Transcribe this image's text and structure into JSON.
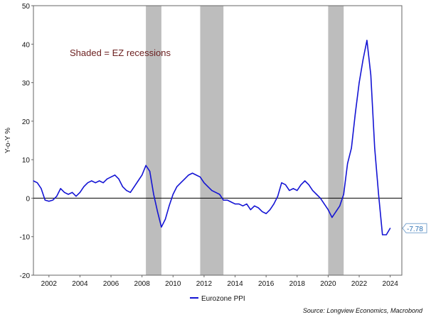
{
  "chart_data": {
    "type": "line",
    "title": "",
    "xlabel": "",
    "ylabel": "Y-o-Y %",
    "xlim": [
      2001.0,
      2024.75
    ],
    "ylim": [
      -20,
      50
    ],
    "y_ticks": [
      -20,
      -10,
      0,
      10,
      20,
      30,
      40,
      50
    ],
    "x_ticks": [
      2002,
      2004,
      2006,
      2008,
      2010,
      2012,
      2014,
      2016,
      2018,
      2020,
      2022,
      2024
    ],
    "y_tick_labels": [
      "-20",
      "-10",
      "0",
      "10",
      "20",
      "30",
      "40",
      "50"
    ],
    "x_tick_labels": [
      "2002",
      "2004",
      "2006",
      "2008",
      "2010",
      "2012",
      "2014",
      "2016",
      "2018",
      "2020",
      "2022",
      "2024"
    ],
    "zero_line": true,
    "recessions": [
      {
        "start": 2008.25,
        "end": 2009.25
      },
      {
        "start": 2011.75,
        "end": 2013.25
      },
      {
        "start": 2020.0,
        "end": 2021.0
      }
    ],
    "annotation": "Shaded = EZ recessions",
    "series": [
      {
        "name": "Eurozone PPI",
        "color": "#1414d4",
        "x": [
          2001.0,
          2001.25,
          2001.5,
          2001.75,
          2002.0,
          2002.25,
          2002.5,
          2002.75,
          2003.0,
          2003.25,
          2003.5,
          2003.75,
          2004.0,
          2004.25,
          2004.5,
          2004.75,
          2005.0,
          2005.25,
          2005.5,
          2005.75,
          2006.0,
          2006.25,
          2006.5,
          2006.75,
          2007.0,
          2007.25,
          2007.5,
          2007.75,
          2008.0,
          2008.25,
          2008.5,
          2008.75,
          2009.0,
          2009.25,
          2009.5,
          2009.75,
          2010.0,
          2010.25,
          2010.5,
          2010.75,
          2011.0,
          2011.25,
          2011.5,
          2011.75,
          2012.0,
          2012.25,
          2012.5,
          2012.75,
          2013.0,
          2013.25,
          2013.5,
          2013.75,
          2014.0,
          2014.25,
          2014.5,
          2014.75,
          2015.0,
          2015.25,
          2015.5,
          2015.75,
          2016.0,
          2016.25,
          2016.5,
          2016.75,
          2017.0,
          2017.25,
          2017.5,
          2017.75,
          2018.0,
          2018.25,
          2018.5,
          2018.75,
          2019.0,
          2019.25,
          2019.5,
          2019.75,
          2020.0,
          2020.25,
          2020.5,
          2020.75,
          2021.0,
          2021.25,
          2021.5,
          2021.75,
          2022.0,
          2022.25,
          2022.5,
          2022.75,
          2023.0,
          2023.25,
          2023.5,
          2023.75,
          2024.0
        ],
        "values": [
          4.5,
          4.0,
          2.5,
          -0.5,
          -0.8,
          -0.5,
          0.5,
          2.5,
          1.5,
          1.0,
          1.5,
          0.5,
          1.5,
          3.0,
          4.0,
          4.5,
          4.0,
          4.5,
          4.0,
          5.0,
          5.5,
          6.0,
          5.0,
          3.0,
          2.0,
          1.5,
          3.0,
          4.5,
          6.0,
          8.5,
          7.0,
          1.0,
          -3.5,
          -7.5,
          -5.5,
          -2.0,
          1.0,
          3.0,
          4.0,
          5.0,
          6.0,
          6.5,
          6.0,
          5.5,
          4.0,
          3.0,
          2.0,
          1.5,
          1.0,
          -0.5,
          -0.5,
          -1.0,
          -1.5,
          -1.5,
          -2.0,
          -1.5,
          -3.0,
          -2.0,
          -2.5,
          -3.5,
          -4.0,
          -3.0,
          -1.5,
          0.5,
          4.0,
          3.5,
          2.0,
          2.5,
          2.0,
          3.5,
          4.5,
          3.5,
          2.0,
          1.0,
          0.0,
          -1.5,
          -3.0,
          -5.0,
          -3.5,
          -2.0,
          1.0,
          9.0,
          13.0,
          22.0,
          30.0,
          36.0,
          41.0,
          32.0,
          13.0,
          1.0,
          -9.5,
          -9.5,
          -7.8
        ]
      }
    ],
    "last_value_label": "-7.78",
    "legend": [
      {
        "label": "Eurozone PPI",
        "color": "#1414d4"
      }
    ],
    "legend_position": "bottom-center",
    "source": "Source: Longview Economics, Macrobond"
  }
}
